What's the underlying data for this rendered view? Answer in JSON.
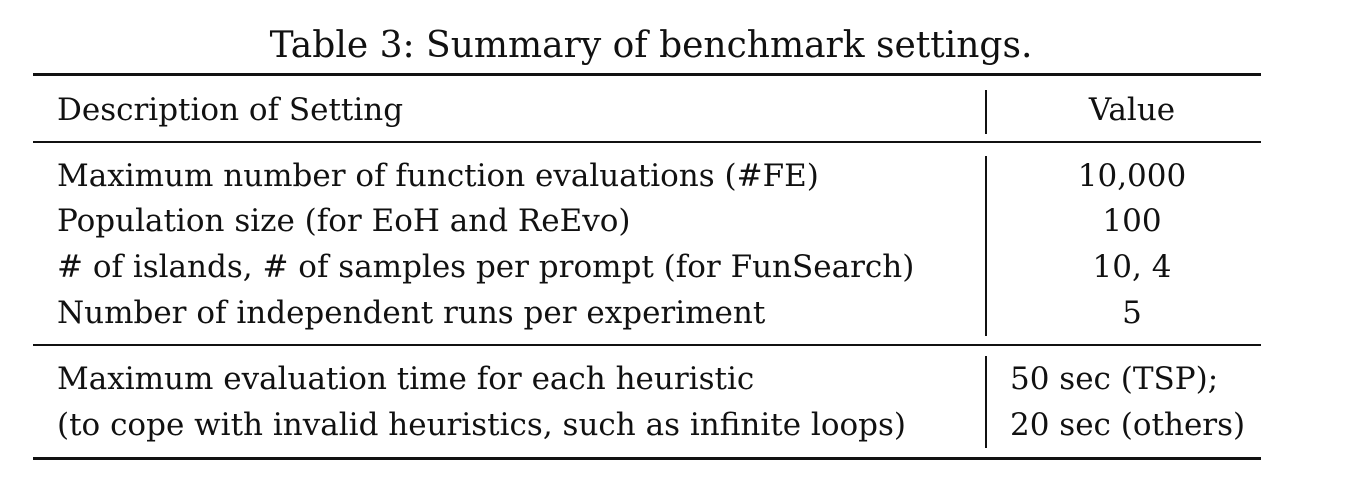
{
  "caption": "Table 3: Summary of benchmark settings.",
  "table": {
    "headers": {
      "description": "Description of Setting",
      "value": "Value"
    },
    "group1": [
      {
        "description": "Maximum number of function evaluations (#FE)",
        "value": "10,000"
      },
      {
        "description": "Population size (for EoH and ReEvo)",
        "value": "100"
      },
      {
        "description": "# of islands, # of samples per prompt (for FunSearch)",
        "value": "10, 4"
      },
      {
        "description": "Number of independent runs per experiment",
        "value": "5"
      }
    ],
    "group2": {
      "description_lines": [
        "Maximum evaluation time for each heuristic",
        "(to cope with invalid heuristics, such as infinite loops)"
      ],
      "value_lines": [
        "50 sec (TSP);",
        "20 sec (others)"
      ]
    }
  }
}
